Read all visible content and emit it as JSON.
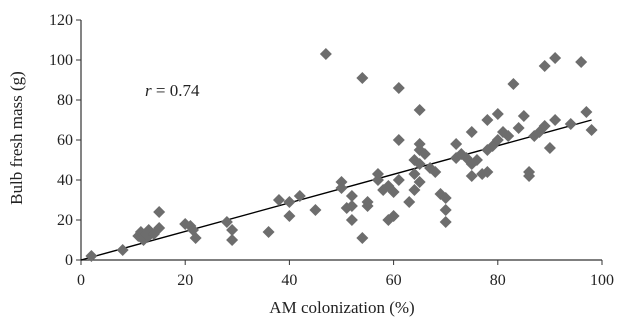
{
  "chart_data": {
    "type": "scatter",
    "xlabel": "AM colonization (%)",
    "ylabel": "Bulb fresh mass (g)",
    "xlim": [
      0,
      100
    ],
    "ylim": [
      0,
      120
    ],
    "x_ticks": [
      0,
      20,
      40,
      60,
      80,
      100
    ],
    "y_ticks": [
      0,
      20,
      40,
      60,
      80,
      100,
      120
    ],
    "grid": false,
    "legend": "none",
    "marker": "diamond",
    "marker_color": "#6d6d6d",
    "line_color": "#000000",
    "annotation": {
      "symbol": "r",
      "text": " = 0.74"
    },
    "trendline": {
      "x": [
        0,
        98
      ],
      "y": [
        0,
        70
      ]
    },
    "points": [
      [
        2,
        2
      ],
      [
        8,
        5
      ],
      [
        11,
        12
      ],
      [
        11.5,
        14
      ],
      [
        12,
        10
      ],
      [
        12.5,
        13
      ],
      [
        13,
        12
      ],
      [
        13,
        15
      ],
      [
        14,
        13
      ],
      [
        15,
        16
      ],
      [
        15,
        24
      ],
      [
        20,
        18
      ],
      [
        21,
        17
      ],
      [
        21.5,
        15
      ],
      [
        22,
        11
      ],
      [
        28,
        19
      ],
      [
        29,
        15
      ],
      [
        29,
        10
      ],
      [
        36,
        14
      ],
      [
        38,
        30
      ],
      [
        40,
        22
      ],
      [
        40,
        29
      ],
      [
        42,
        32
      ],
      [
        45,
        25
      ],
      [
        47,
        103
      ],
      [
        50,
        36
      ],
      [
        50,
        39
      ],
      [
        51,
        26
      ],
      [
        52,
        20
      ],
      [
        52,
        32
      ],
      [
        52,
        27
      ],
      [
        54,
        11
      ],
      [
        54,
        91
      ],
      [
        55,
        27
      ],
      [
        55,
        29
      ],
      [
        57,
        40
      ],
      [
        57,
        43
      ],
      [
        58,
        35
      ],
      [
        59,
        20
      ],
      [
        59,
        37
      ],
      [
        60,
        34
      ],
      [
        60,
        22
      ],
      [
        61,
        40
      ],
      [
        61,
        86
      ],
      [
        61,
        60
      ],
      [
        63,
        29
      ],
      [
        64,
        50
      ],
      [
        64,
        43
      ],
      [
        64,
        35
      ],
      [
        65,
        75
      ],
      [
        65,
        48
      ],
      [
        65,
        55
      ],
      [
        65,
        58
      ],
      [
        65,
        39
      ],
      [
        66,
        53
      ],
      [
        67,
        46
      ],
      [
        68,
        44
      ],
      [
        69,
        33
      ],
      [
        70,
        19
      ],
      [
        70,
        31
      ],
      [
        70,
        25
      ],
      [
        72,
        58
      ],
      [
        72,
        51
      ],
      [
        73,
        53
      ],
      [
        74,
        51
      ],
      [
        75,
        42
      ],
      [
        75,
        64
      ],
      [
        75,
        48
      ],
      [
        76,
        50
      ],
      [
        77,
        43
      ],
      [
        78,
        55
      ],
      [
        78,
        70
      ],
      [
        78,
        44
      ],
      [
        79,
        57
      ],
      [
        80,
        60
      ],
      [
        80,
        73
      ],
      [
        81,
        64
      ],
      [
        82,
        62
      ],
      [
        83,
        88
      ],
      [
        84,
        66
      ],
      [
        85,
        72
      ],
      [
        86,
        42
      ],
      [
        86,
        44
      ],
      [
        87,
        62
      ],
      [
        88,
        64
      ],
      [
        89,
        67
      ],
      [
        89,
        97
      ],
      [
        90,
        56
      ],
      [
        91,
        101
      ],
      [
        91,
        70
      ],
      [
        94,
        68
      ],
      [
        96,
        99
      ],
      [
        97,
        74
      ],
      [
        98,
        65
      ]
    ]
  }
}
